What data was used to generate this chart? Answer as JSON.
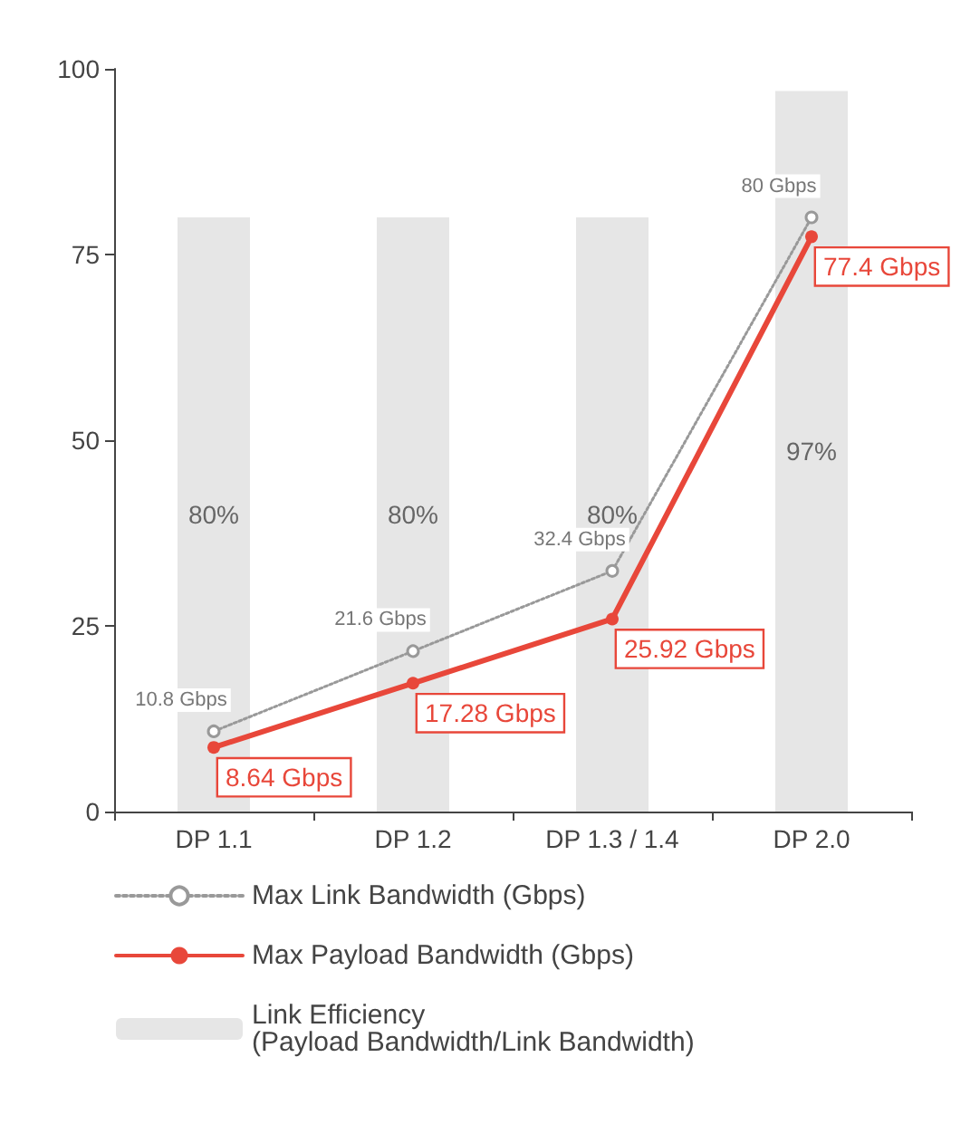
{
  "chart_data": {
    "type": "bar",
    "categories": [
      "DP 1.1",
      "DP 1.2",
      "DP 1.3 / 1.4",
      "DP 2.0"
    ],
    "ylim": [
      0,
      100
    ],
    "yticks": [
      0,
      25,
      50,
      75,
      100
    ],
    "grid": false,
    "legend": "bottom left",
    "series": [
      {
        "name": "Max Link Bandwidth (Gbps)",
        "type": "line",
        "color": "#999999",
        "marker": "circle",
        "line_style": "dotted",
        "values": [
          10.8,
          21.6,
          32.4,
          80
        ],
        "value_labels": [
          "10.8 Gbps",
          "21.6 Gbps",
          "32.4 Gbps",
          "80 Gbps"
        ]
      },
      {
        "name": "Max Payload Bandwidth (Gbps)",
        "type": "line",
        "color": "#e8473a",
        "marker": "circle",
        "line_style": "solid",
        "values": [
          8.64,
          17.28,
          25.92,
          77.4
        ],
        "value_labels": [
          "8.64 Gbps",
          "17.28 Gbps",
          "25.92 Gbps",
          "77.4 Gbps"
        ]
      },
      {
        "name": "Link Efficiency\n(Payload Bandwidth/Link Bandwidth)",
        "color": "#e6e6e6",
        "values": [
          80,
          80,
          80,
          97
        ],
        "value_labels": [
          "80%",
          "80%",
          "80%",
          "97%"
        ]
      }
    ]
  }
}
